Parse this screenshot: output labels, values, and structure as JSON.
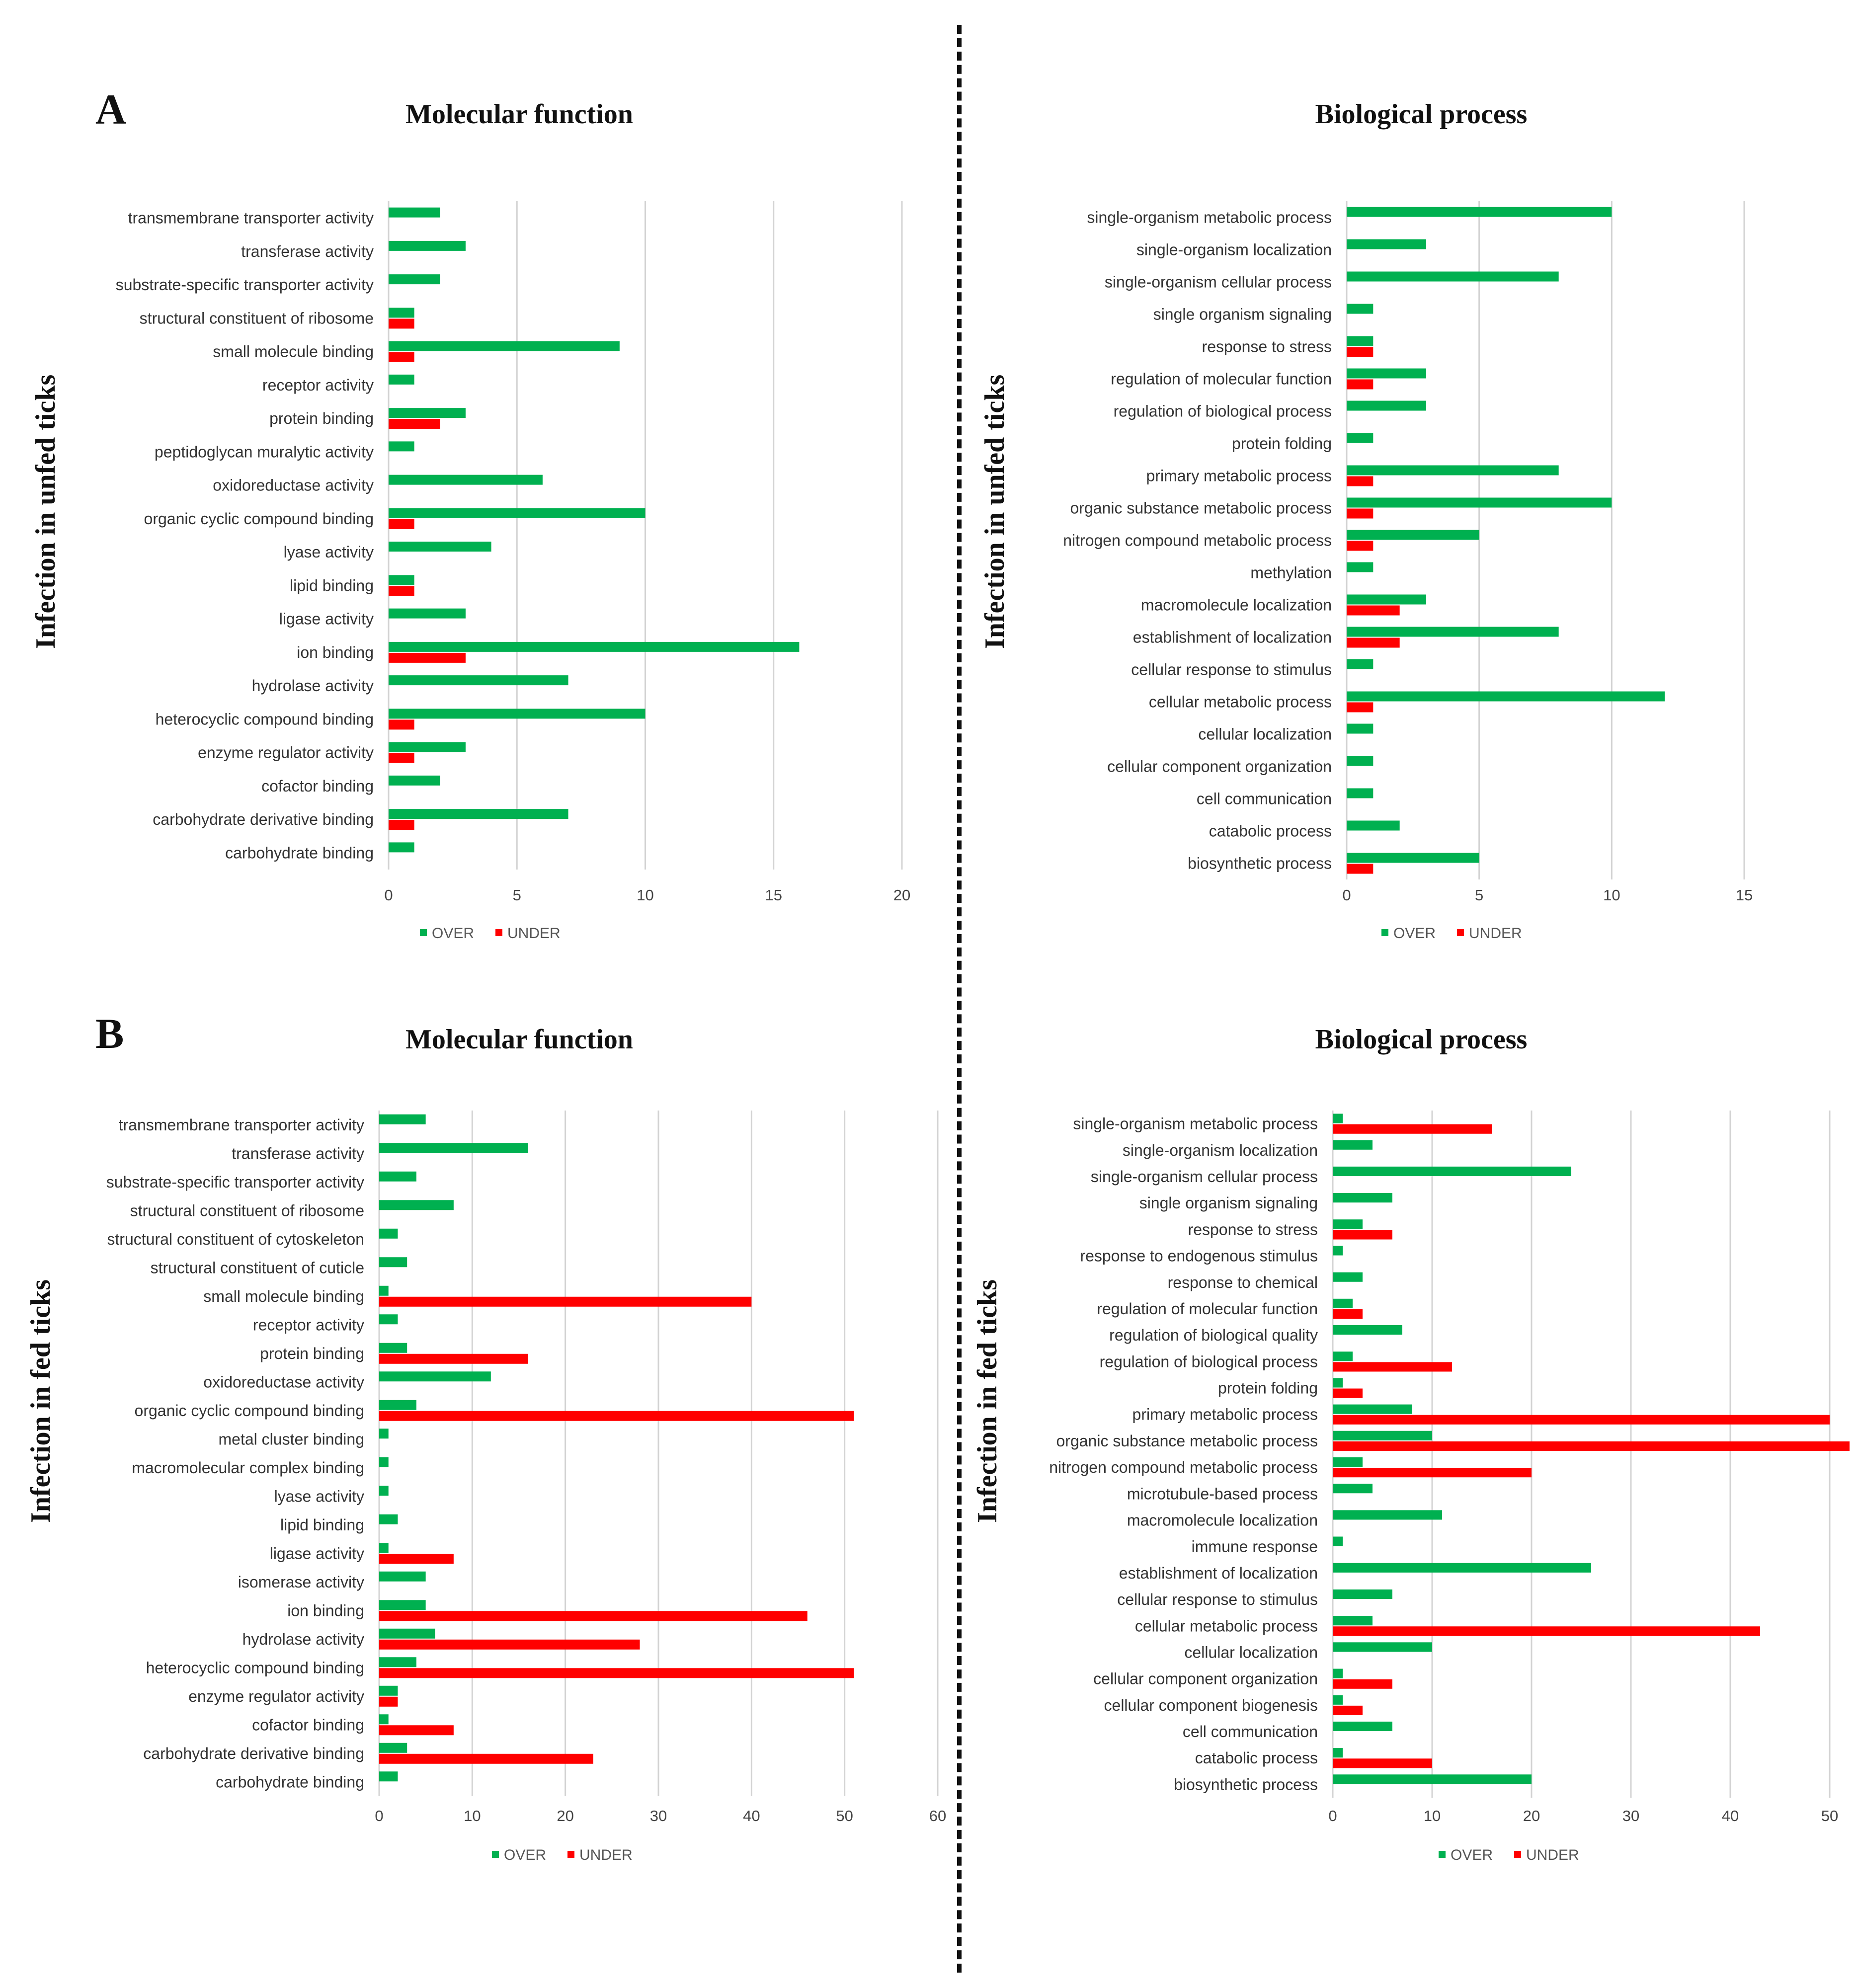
{
  "colors": {
    "over": "#00b050",
    "under": "#ff0000",
    "grid": "#d3d3d3"
  },
  "figure": {
    "panel_labels": [
      "A",
      "B"
    ],
    "row_labels": [
      "Infection in unfed ticks",
      "Infection in fed ticks"
    ],
    "titles": {
      "a_left": "Molecular function",
      "a_right": "Biological process",
      "b_left": "Molecular function",
      "b_right": "Biological process"
    }
  },
  "chart_data": [
    {
      "type": "bar",
      "title": "Molecular function",
      "orientation": "horizontal",
      "xlim": [
        0,
        20
      ],
      "xticks": [
        0,
        5,
        10,
        15,
        20
      ],
      "legend": [
        "OVER",
        "UNDER"
      ],
      "categories": [
        "transmembrane transporter activity",
        "transferase activity",
        "substrate-specific transporter activity",
        "structural constituent of ribosome",
        "small molecule binding",
        "receptor activity",
        "protein binding",
        "peptidoglycan muralytic activity",
        "oxidoreductase activity",
        "organic cyclic compound binding",
        "lyase activity",
        "lipid binding",
        "ligase activity",
        "ion binding",
        "hydrolase activity",
        "heterocyclic compound binding",
        "enzyme regulator activity",
        "cofactor binding",
        "carbohydrate derivative binding",
        "carbohydrate binding"
      ],
      "series": [
        {
          "name": "OVER",
          "values": [
            2,
            3,
            2,
            1,
            9,
            1,
            3,
            1,
            6,
            10,
            4,
            1,
            3,
            16,
            7,
            10,
            3,
            2,
            7,
            1
          ]
        },
        {
          "name": "UNDER",
          "values": [
            0,
            0,
            0,
            1,
            1,
            0,
            2,
            0,
            0,
            1,
            0,
            1,
            0,
            3,
            0,
            1,
            1,
            0,
            1,
            0
          ]
        }
      ]
    },
    {
      "type": "bar",
      "title": "Biological process",
      "orientation": "horizontal",
      "xlim": [
        0,
        15
      ],
      "xticks": [
        0,
        5,
        10,
        15
      ],
      "legend": [
        "OVER",
        "UNDER"
      ],
      "categories": [
        "single-organism metabolic process",
        "single-organism localization",
        "single-organism cellular process",
        "single organism signaling",
        "response to stress",
        "regulation of molecular function",
        "regulation of biological process",
        "protein folding",
        "primary metabolic process",
        "organic substance metabolic process",
        "nitrogen compound metabolic process",
        "methylation",
        "macromolecule localization",
        "establishment of localization",
        "cellular response to stimulus",
        "cellular metabolic process",
        "cellular localization",
        "cellular component organization",
        "cell communication",
        "catabolic process",
        "biosynthetic process"
      ],
      "series": [
        {
          "name": "OVER",
          "values": [
            10,
            3,
            8,
            1,
            1,
            3,
            3,
            1,
            8,
            10,
            5,
            1,
            3,
            8,
            1,
            12,
            1,
            1,
            1,
            2,
            5
          ]
        },
        {
          "name": "UNDER",
          "values": [
            0,
            0,
            0,
            0,
            1,
            1,
            0,
            0,
            1,
            1,
            1,
            0,
            2,
            2,
            0,
            1,
            0,
            0,
            0,
            0,
            1
          ]
        }
      ]
    },
    {
      "type": "bar",
      "title": "Molecular function",
      "orientation": "horizontal",
      "xlim": [
        0,
        60
      ],
      "xticks": [
        0,
        10,
        20,
        30,
        40,
        50,
        60
      ],
      "legend": [
        "OVER",
        "UNDER"
      ],
      "categories": [
        "transmembrane transporter activity",
        "transferase activity",
        "substrate-specific transporter activity",
        "structural constituent of ribosome",
        "structural constituent of cytoskeleton",
        "structural constituent of cuticle",
        "small molecule binding",
        "receptor activity",
        "protein binding",
        "oxidoreductase activity",
        "organic cyclic compound binding",
        "metal cluster binding",
        "macromolecular complex binding",
        "lyase activity",
        "lipid binding",
        "ligase activity",
        "isomerase activity",
        "ion binding",
        "hydrolase activity",
        "heterocyclic compound binding",
        "enzyme regulator activity",
        "cofactor binding",
        "carbohydrate derivative binding",
        "carbohydrate binding"
      ],
      "series": [
        {
          "name": "OVER",
          "values": [
            5,
            16,
            4,
            8,
            2,
            3,
            1,
            2,
            3,
            12,
            4,
            1,
            1,
            1,
            2,
            1,
            5,
            5,
            6,
            4,
            2,
            1,
            3,
            2
          ]
        },
        {
          "name": "UNDER",
          "values": [
            0,
            0,
            0,
            0,
            0,
            0,
            40,
            0,
            16,
            0,
            51,
            0,
            0,
            0,
            0,
            8,
            0,
            46,
            28,
            51,
            2,
            8,
            23,
            0
          ]
        }
      ]
    },
    {
      "type": "bar",
      "title": "Biological process",
      "orientation": "horizontal",
      "xlim": [
        0,
        50
      ],
      "xticks": [
        0,
        10,
        20,
        30,
        40,
        50
      ],
      "legend": [
        "OVER",
        "UNDER"
      ],
      "categories": [
        "single-organism metabolic process",
        "single-organism localization",
        "single-organism cellular process",
        "single organism signaling",
        "response to stress",
        "response to endogenous stimulus",
        "response to chemical",
        "regulation of molecular function",
        "regulation of biological quality",
        "regulation of biological process",
        "protein folding",
        "primary metabolic process",
        "organic substance metabolic process",
        "nitrogen compound metabolic process",
        "microtubule-based process",
        "macromolecule localization",
        "immune response",
        "establishment of localization",
        "cellular response to stimulus",
        "cellular metabolic process",
        "cellular localization",
        "cellular component organization",
        "cellular component biogenesis",
        "cell communication",
        "catabolic process",
        "biosynthetic process"
      ],
      "series": [
        {
          "name": "OVER",
          "values": [
            1,
            4,
            24,
            6,
            3,
            1,
            3,
            2,
            7,
            2,
            1,
            8,
            10,
            3,
            4,
            11,
            1,
            26,
            6,
            4,
            10,
            1,
            1,
            6,
            1,
            20
          ]
        },
        {
          "name": "UNDER",
          "values": [
            16,
            0,
            0,
            0,
            6,
            0,
            0,
            3,
            0,
            12,
            3,
            50,
            52,
            20,
            0,
            0,
            0,
            0,
            0,
            43,
            0,
            6,
            3,
            0,
            10,
            0
          ]
        }
      ]
    }
  ]
}
